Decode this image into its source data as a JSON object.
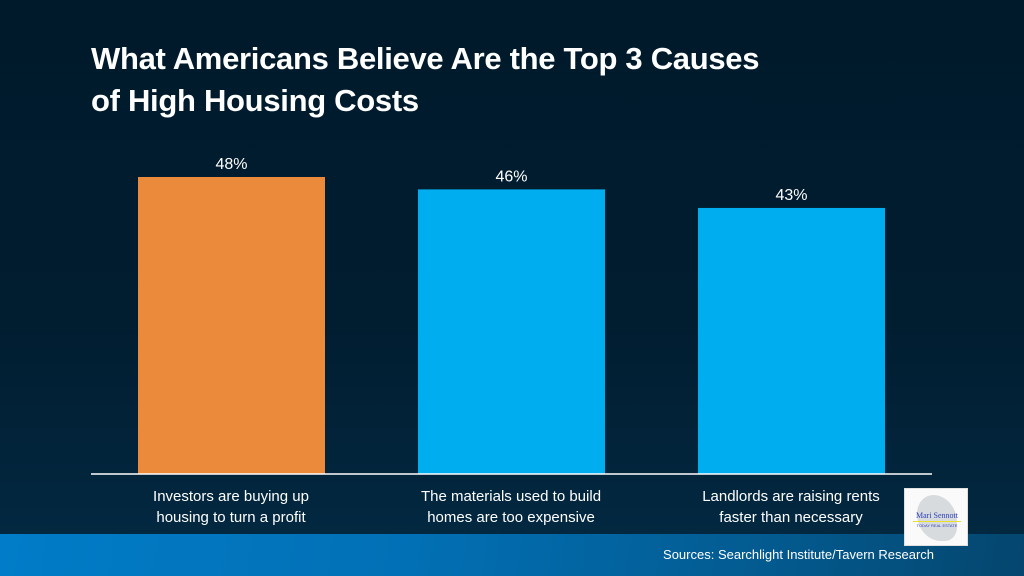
{
  "chart_data": {
    "type": "bar",
    "title": "What Americans Believe Are the Top 3 Causes of High Housing Costs",
    "title_lines": [
      "What Americans Believe Are the Top 3 Causes",
      "of High Housing Costs"
    ],
    "categories": [
      "Investors are buying up housing to turn a profit",
      "The materials used to build homes are too expensive",
      "Landlords are raising rents faster than necessary"
    ],
    "category_lines": [
      [
        "Investors are buying up",
        "housing to turn a profit"
      ],
      [
        "The materials used to build",
        "homes are too expensive"
      ],
      [
        "Landlords are raising rents",
        "faster than necessary"
      ]
    ],
    "values": [
      48,
      46,
      43
    ],
    "data_labels": [
      "48%",
      "46%",
      "43%"
    ],
    "bar_colors": [
      "#eb8a3a",
      "#00adee",
      "#00adee"
    ],
    "xlabel": "",
    "ylabel": "",
    "ylim": [
      0,
      48
    ],
    "grid": false,
    "legend": "none"
  },
  "footer": {
    "source": "Sources: Searchlight Institute/Tavern Research"
  },
  "logo": {
    "name": "Mari Sennott",
    "tagline": "TODAY REAL ESTATE"
  },
  "colors": {
    "background": "#011d30",
    "highlight_bar": "#eb8a3a",
    "bar": "#00adee",
    "band": "#017cc8"
  }
}
